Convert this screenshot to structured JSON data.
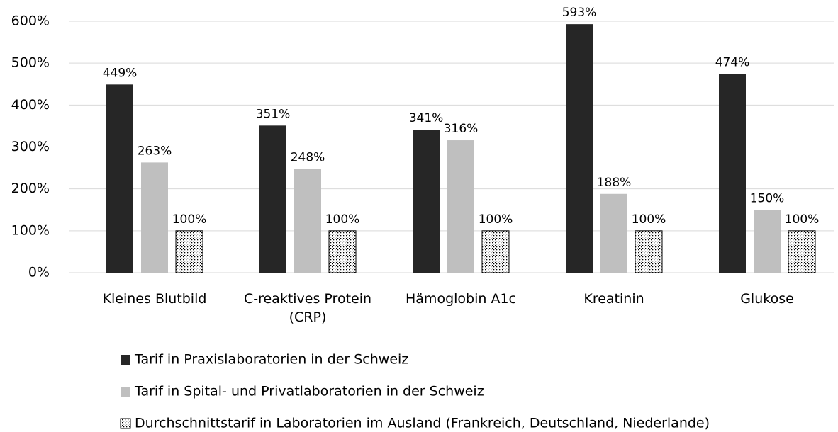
{
  "chart_data": {
    "type": "bar",
    "categories": [
      "Kleines Blutbild",
      "C-reaktives Protein (CRP)",
      "Hämoglobin A1c",
      "Kreatinin",
      "Glukose"
    ],
    "series": [
      {
        "name": "Tarif in Praxislaboratorien in der Schweiz",
        "color": "#262626",
        "values": [
          449,
          351,
          341,
          593,
          474
        ],
        "value_labels": [
          "449%",
          "351%",
          "341%",
          "593%",
          "474%"
        ]
      },
      {
        "name": "Tarif in Spital- und Privatlaboratorien in der Schweiz",
        "color": "#bfbfbf",
        "values": [
          263,
          248,
          316,
          188,
          150
        ],
        "value_labels": [
          "263%",
          "248%",
          "316%",
          "188%",
          "150%"
        ]
      },
      {
        "name": "Durchschnittstarif in Laboratorien im Ausland (Frankreich, Deutschland, Niederlande)",
        "color": "#ffffff",
        "pattern": "dots",
        "values": [
          100,
          100,
          100,
          100,
          100
        ],
        "value_labels": [
          "100%",
          "100%",
          "100%",
          "100%",
          "100%"
        ]
      }
    ],
    "ylim": [
      0,
      600
    ],
    "yticks": [
      {
        "value": 0,
        "label": "0%"
      },
      {
        "value": 100,
        "label": "100%"
      },
      {
        "value": 200,
        "label": "200%"
      },
      {
        "value": 300,
        "label": "300%"
      },
      {
        "value": 400,
        "label": "400%"
      },
      {
        "value": 500,
        "label": "500%"
      },
      {
        "value": 600,
        "label": "600%"
      }
    ],
    "grid": true,
    "legend": "bottom"
  }
}
